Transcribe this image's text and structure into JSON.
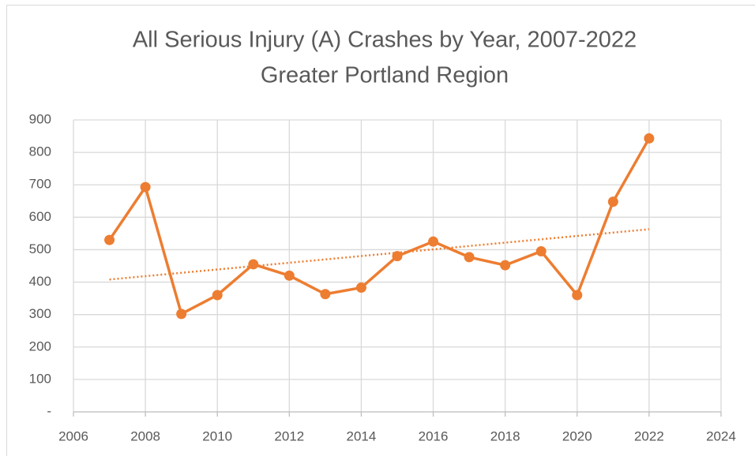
{
  "chart_data": {
    "type": "line",
    "title": "All Serious Injury (A) Crashes by Year, 2007-2022",
    "subtitle": "Greater Portland Region",
    "x": [
      2007,
      2008,
      2009,
      2010,
      2011,
      2012,
      2013,
      2014,
      2015,
      2016,
      2017,
      2018,
      2019,
      2020,
      2021,
      2022
    ],
    "series": [
      {
        "color": "#ed7d31",
        "values": [
          530,
          693,
          302,
          360,
          455,
          420,
          363,
          383,
          480,
          525,
          477,
          452,
          495,
          360,
          648,
          843
        ]
      }
    ],
    "trendline": {
      "x": [
        2007,
        2022
      ],
      "values": [
        408,
        563
      ],
      "color": "#ed7d31"
    },
    "xlim": [
      2006,
      2024
    ],
    "xticks": [
      2006,
      2008,
      2010,
      2012,
      2014,
      2016,
      2018,
      2020,
      2022,
      2024
    ],
    "ylim": [
      0,
      900
    ],
    "yticks": [
      {
        "value": 0,
        "label": "-"
      },
      100,
      200,
      300,
      400,
      500,
      600,
      700,
      800,
      900
    ],
    "grid": true
  }
}
